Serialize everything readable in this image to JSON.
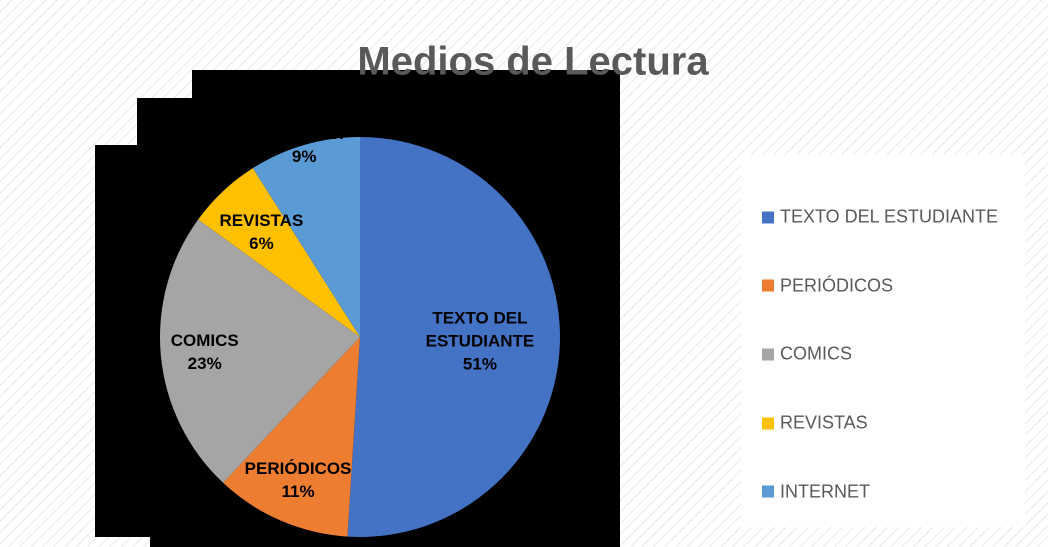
{
  "chart_data": {
    "type": "pie",
    "title": "Medios de Lectura",
    "categories": [
      "TEXTO DEL ESTUDIANTE",
      "PERIÓDICOS",
      "COMICS",
      "REVISTAS",
      "INTERNET"
    ],
    "values": [
      51,
      11,
      23,
      6,
      9
    ],
    "value_labels": [
      "51%",
      "11%",
      "23%",
      "6%",
      "9%"
    ],
    "colors": [
      "#4472c4",
      "#ed7d31",
      "#a5a5a5",
      "#ffc000",
      "#5b9bd5"
    ],
    "legend": "right"
  }
}
